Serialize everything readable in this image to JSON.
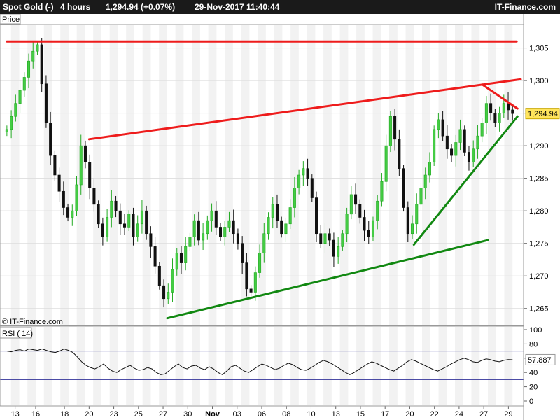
{
  "header": {
    "instrument": "Spot Gold (-)",
    "timeframe": "4 hours",
    "last_change": "1,294.94 (+0.07%)",
    "datetime": "29-Nov-2017 11:40:44",
    "brand": "IT-Finance.com"
  },
  "chart_data": [
    {
      "type": "candlestick",
      "title": "Spot Gold (-)",
      "ylabel": "Price",
      "watermark": "© IT-Finance.com",
      "last_price_label": "1,294.94",
      "last_price": 1294.94,
      "ylim": [
        1262.5,
        1308.5
      ],
      "yticks": [
        1265,
        1270,
        1275,
        1280,
        1285,
        1290,
        1295,
        1300,
        1305
      ],
      "ytick_labels": [
        "1,265",
        "1,270",
        "1,275",
        "1,280",
        "1,285",
        "1,290",
        "1,295",
        "1,300",
        "1,305"
      ],
      "x_labels": [
        "13",
        "16",
        "18",
        "20",
        "23",
        "25",
        "27",
        "30",
        "Nov",
        "03",
        "06",
        "08",
        "10",
        "13",
        "15",
        "17",
        "20",
        "22",
        "24",
        "27",
        "29"
      ],
      "x_label_positions": [
        0.5,
        3.0,
        6.5,
        9.5,
        12.5,
        15.5,
        18.5,
        21.5,
        24.5,
        27.5,
        30.5,
        33.5,
        36.5,
        39.5,
        42.5,
        45.5,
        48.5,
        51.5,
        54.5,
        57.5,
        60.5
      ],
      "x_range": [
        -1,
        62
      ],
      "gridlines": true,
      "closes": [
        1292.5,
        1294.5,
        1296.5,
        1298.5,
        1300.5,
        1303.0,
        1304.5,
        1305.5,
        1299.5,
        1293.5,
        1288.5,
        1285.5,
        1283.0,
        1280.5,
        1279.0,
        1280.0,
        1284.0,
        1290.0,
        1287.5,
        1283.5,
        1281.0,
        1278.0,
        1276.0,
        1279.0,
        1281.5,
        1280.0,
        1278.0,
        1277.5,
        1279.5,
        1276.0,
        1278.0,
        1280.0,
        1276.5,
        1274.5,
        1271.5,
        1268.5,
        1266.5,
        1267.5,
        1271.0,
        1273.5,
        1272.0,
        1274.5,
        1276.0,
        1278.5,
        1275.5,
        1276.5,
        1278.5,
        1280.0,
        1277.5,
        1276.0,
        1277.5,
        1278.5,
        1276.5,
        1275.0,
        1272.0,
        1268.0,
        1267.5,
        1270.5,
        1273.5,
        1276.5,
        1279.0,
        1281.0,
        1278.5,
        1276.5,
        1278.0,
        1280.5,
        1283.5,
        1285.5,
        1286.5,
        1285.0,
        1282.0,
        1276.5,
        1275.0,
        1276.5,
        1275.5,
        1273.0,
        1274.5,
        1276.5,
        1279.5,
        1282.5,
        1281.0,
        1279.0,
        1277.0,
        1276.0,
        1278.5,
        1281.5,
        1284.5,
        1290.0,
        1294.5,
        1291.0,
        1286.5,
        1280.5,
        1276.5,
        1278.0,
        1281.0,
        1283.5,
        1285.5,
        1287.5,
        1292.5,
        1294.0,
        1291.5,
        1289.5,
        1288.5,
        1290.5,
        1292.5,
        1289.0,
        1287.5,
        1289.5,
        1291.5,
        1293.5,
        1296.5,
        1295.0,
        1293.5,
        1295.0,
        1296.5,
        1295.5,
        1294.94
      ],
      "trendlines": [
        {
          "label": "resistance-top",
          "color": "#ee1c1c",
          "points": [
            [
              -0.5,
              1306.0
            ],
            [
              61.5,
              1306.0
            ]
          ]
        },
        {
          "label": "resistance-channel",
          "color": "#ee1c1c",
          "points": [
            [
              9.5,
              1291.0
            ],
            [
              62.0,
              1300.2
            ]
          ]
        },
        {
          "label": "resistance-short",
          "color": "#ee1c1c",
          "points": [
            [
              57.3,
              1299.4
            ],
            [
              61.6,
              1295.7
            ]
          ]
        },
        {
          "label": "support-channel",
          "color": "#118811",
          "points": [
            [
              19.0,
              1263.5
            ],
            [
              58.0,
              1275.5
            ]
          ]
        },
        {
          "label": "support-short",
          "color": "#118811",
          "points": [
            [
              49.0,
              1274.8
            ],
            [
              61.6,
              1294.5
            ]
          ]
        }
      ]
    },
    {
      "type": "line",
      "title": "RSI ( 14)",
      "ylim": [
        0,
        100
      ],
      "yticks": [
        0,
        20,
        40,
        60,
        80,
        100
      ],
      "ytick_labels": [
        "0",
        "20",
        "40",
        "60",
        "80",
        "100"
      ],
      "levels": [
        30,
        70
      ],
      "last_value_label": "57.887",
      "x_range": [
        -1,
        62
      ],
      "values": [
        70,
        69,
        71,
        72,
        70,
        73,
        72,
        71,
        73,
        71,
        69,
        68,
        70,
        73,
        71,
        68,
        62,
        55,
        50,
        47,
        45,
        48,
        52,
        46,
        42,
        40,
        44,
        47,
        50,
        46,
        43,
        44,
        47,
        45,
        40,
        37,
        38,
        43,
        48,
        52,
        47,
        45,
        49,
        50,
        46,
        44,
        48,
        45,
        40,
        37,
        42,
        48,
        50,
        46,
        42,
        40,
        44,
        48,
        52,
        50,
        47,
        44,
        46,
        50,
        53,
        51,
        47,
        44,
        43,
        46,
        50,
        54,
        57,
        55,
        52,
        48,
        44,
        40,
        37,
        40,
        44,
        48,
        52,
        55,
        53,
        50,
        47,
        44,
        42,
        46,
        50,
        55,
        58,
        56,
        53,
        50,
        47,
        44,
        42,
        45,
        48,
        52,
        55,
        58,
        60,
        58,
        55,
        54,
        57,
        59,
        58,
        56,
        55,
        57,
        58,
        57.887
      ]
    }
  ]
}
